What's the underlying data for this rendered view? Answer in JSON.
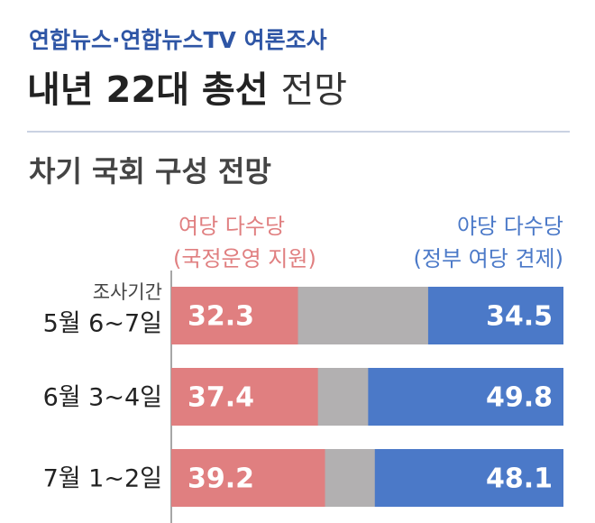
{
  "chart_data": {
    "type": "stacked-bar-horizontal",
    "kicker": "연합뉴스·연합뉴스TV 여론조사",
    "title": "내년 22대 총선",
    "title_suffix": "전망",
    "subtitle": "차기 국회 구성 전망",
    "category_label": "조사기간",
    "categories": [
      "5월 6~7일",
      "6월 3~4일",
      "7월 1~2일"
    ],
    "series": [
      {
        "name": "여당 다수당",
        "sublabel": "(국정운영 지원)",
        "color": "#e07f80",
        "values": [
          32.3,
          37.4,
          39.2
        ]
      },
      {
        "name": "야당 다수당",
        "sublabel": "(정부 여당 견제)",
        "color": "#4b79c8",
        "values": [
          34.5,
          49.8,
          48.1
        ]
      }
    ],
    "remainder_color": "#b2b0b1",
    "xlim": [
      0,
      100
    ]
  }
}
